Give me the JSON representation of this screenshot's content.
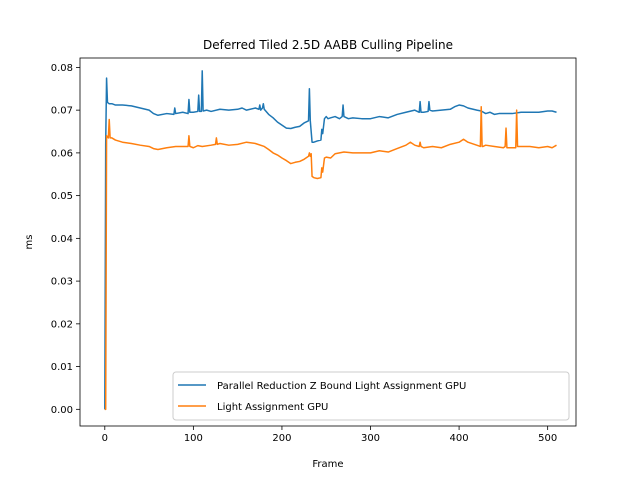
{
  "chart_data": {
    "type": "line",
    "title": "Deferred Tiled 2.5D AABB Culling Pipeline",
    "xlabel": "Frame",
    "ylabel": "ms",
    "xlim": [
      -28,
      532
    ],
    "ylim": [
      -0.0039,
      0.0822
    ],
    "xticks": [
      0,
      100,
      200,
      300,
      400,
      500
    ],
    "yticks": [
      0.0,
      0.01,
      0.02,
      0.03,
      0.04,
      0.05,
      0.06,
      0.07,
      0.08
    ],
    "ytick_labels": [
      "0.00",
      "0.01",
      "0.02",
      "0.03",
      "0.04",
      "0.05",
      "0.06",
      "0.07",
      "0.08"
    ],
    "grid": false,
    "legend_position": "lower-right",
    "series": [
      {
        "name": "Parallel Reduction Z Bound Light Assignment GPU",
        "color": "#1f77b4",
        "x": [
          0,
          1,
          2,
          3,
          5,
          8,
          12,
          20,
          30,
          40,
          50,
          55,
          60,
          70,
          78,
          79,
          80,
          88,
          94,
          95,
          96,
          100,
          105,
          106,
          107,
          109,
          110,
          111,
          115,
          120,
          130,
          140,
          150,
          155,
          160,
          170,
          174,
          175,
          176,
          178,
          179,
          180,
          185,
          190,
          195,
          200,
          205,
          210,
          215,
          220,
          225,
          230,
          231,
          232,
          234,
          236,
          240,
          244,
          245,
          246,
          248,
          250,
          252,
          255,
          260,
          265,
          268,
          269,
          270,
          275,
          280,
          290,
          300,
          310,
          320,
          330,
          340,
          350,
          355,
          356,
          357,
          360,
          365,
          366,
          367,
          370,
          380,
          390,
          395,
          400,
          405,
          410,
          420,
          425,
          430,
          435,
          440,
          445,
          450,
          460,
          470,
          480,
          490,
          500,
          505,
          510
        ],
        "values": [
          0.0,
          0.062,
          0.0775,
          0.0718,
          0.0715,
          0.0715,
          0.0712,
          0.0712,
          0.071,
          0.0705,
          0.07,
          0.0692,
          0.0688,
          0.0692,
          0.069,
          0.0705,
          0.0692,
          0.0695,
          0.0692,
          0.0725,
          0.0695,
          0.0695,
          0.0697,
          0.0735,
          0.0697,
          0.0697,
          0.0792,
          0.0698,
          0.07,
          0.0697,
          0.0702,
          0.07,
          0.0702,
          0.0705,
          0.07,
          0.0705,
          0.0702,
          0.0712,
          0.07,
          0.0705,
          0.0715,
          0.0702,
          0.069,
          0.0682,
          0.0672,
          0.0665,
          0.0658,
          0.0657,
          0.066,
          0.0662,
          0.067,
          0.0675,
          0.075,
          0.0675,
          0.0625,
          0.0625,
          0.0628,
          0.063,
          0.0655,
          0.0645,
          0.068,
          0.0685,
          0.068,
          0.0682,
          0.0685,
          0.068,
          0.0685,
          0.0712,
          0.0685,
          0.068,
          0.0682,
          0.068,
          0.068,
          0.0685,
          0.0682,
          0.069,
          0.0695,
          0.07,
          0.0695,
          0.072,
          0.0695,
          0.0695,
          0.0697,
          0.072,
          0.07,
          0.0698,
          0.07,
          0.0702,
          0.0708,
          0.0712,
          0.071,
          0.0705,
          0.07,
          0.0698,
          0.0692,
          0.0695,
          0.069,
          0.0692,
          0.0692,
          0.0692,
          0.0695,
          0.0695,
          0.0695,
          0.0698,
          0.0698,
          0.0695
        ]
      },
      {
        "name": "Light Assignment GPU",
        "color": "#ff7f0e",
        "x": [
          0,
          1,
          2,
          3,
          4,
          5,
          6,
          8,
          12,
          20,
          30,
          40,
          50,
          55,
          60,
          70,
          80,
          90,
          94,
          95,
          96,
          100,
          105,
          110,
          120,
          125,
          126,
          127,
          130,
          140,
          150,
          160,
          170,
          180,
          185,
          190,
          195,
          200,
          205,
          210,
          215,
          220,
          225,
          230,
          231,
          232,
          233,
          234,
          236,
          240,
          244,
          245,
          246,
          248,
          250,
          255,
          260,
          270,
          280,
          290,
          300,
          310,
          320,
          330,
          340,
          345,
          350,
          355,
          356,
          357,
          360,
          370,
          380,
          390,
          400,
          405,
          410,
          420,
          424,
          425,
          426,
          427,
          430,
          440,
          450,
          452,
          453,
          454,
          455,
          460,
          464,
          465,
          466,
          467,
          470,
          480,
          490,
          500,
          505,
          510
        ],
        "values": [
          0.0,
          0.0,
          0.064,
          0.0638,
          0.0635,
          0.0678,
          0.0635,
          0.0635,
          0.063,
          0.0625,
          0.0622,
          0.0618,
          0.0615,
          0.061,
          0.0608,
          0.0612,
          0.0615,
          0.0615,
          0.0615,
          0.064,
          0.0615,
          0.0612,
          0.0617,
          0.0615,
          0.0618,
          0.062,
          0.0635,
          0.062,
          0.0622,
          0.0618,
          0.062,
          0.0625,
          0.0622,
          0.0615,
          0.0608,
          0.06,
          0.0595,
          0.0588,
          0.0582,
          0.0575,
          0.0578,
          0.058,
          0.0585,
          0.0592,
          0.06,
          0.0592,
          0.0598,
          0.0545,
          0.0542,
          0.054,
          0.0542,
          0.0565,
          0.0555,
          0.0588,
          0.059,
          0.0588,
          0.0598,
          0.0602,
          0.06,
          0.06,
          0.06,
          0.0605,
          0.0602,
          0.061,
          0.0618,
          0.0625,
          0.0618,
          0.0615,
          0.0625,
          0.0615,
          0.0612,
          0.0615,
          0.0612,
          0.062,
          0.0625,
          0.0632,
          0.0625,
          0.0618,
          0.0615,
          0.0708,
          0.0615,
          0.0615,
          0.0618,
          0.0615,
          0.0612,
          0.0615,
          0.0658,
          0.0612,
          0.0612,
          0.0612,
          0.0612,
          0.07,
          0.0615,
          0.0615,
          0.0615,
          0.0615,
          0.0612,
          0.0615,
          0.0612,
          0.0618
        ]
      }
    ]
  }
}
